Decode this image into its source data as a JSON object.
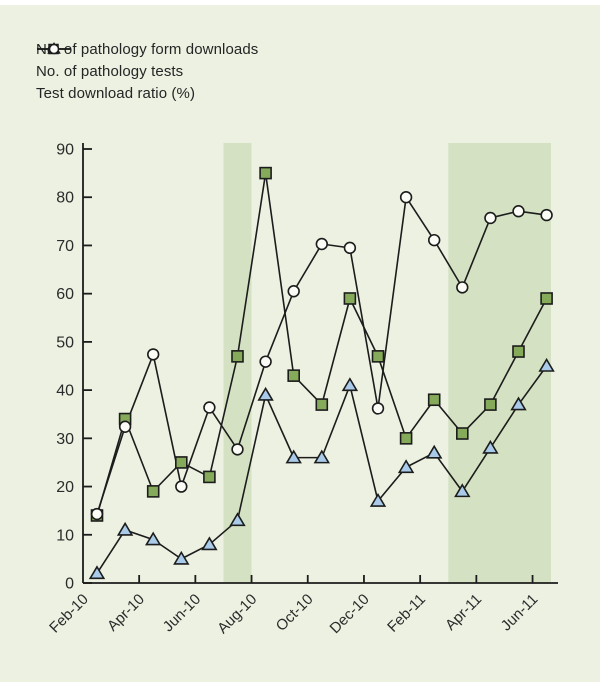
{
  "chart_data": {
    "type": "line",
    "title": "",
    "xlabel": "",
    "ylabel": "",
    "ylim": [
      0,
      90
    ],
    "y_ticks": [
      0,
      10,
      20,
      30,
      40,
      50,
      60,
      70,
      80,
      90
    ],
    "grid": false,
    "legend_position": "top-left",
    "categories": [
      "Feb-10",
      "Mar-10",
      "Apr-10",
      "May-10",
      "Jun-10",
      "Jul-10",
      "Aug-10",
      "Sep-10",
      "Oct-10",
      "Nov-10",
      "Dec-10",
      "Jan-11",
      "Feb-11",
      "Mar-11",
      "Apr-11",
      "May-11",
      "Jun-11"
    ],
    "x_tick_labels": [
      "Feb-10",
      "Apr-10",
      "Jun-10",
      "Aug-10",
      "Oct-10",
      "Dec-10",
      "Feb-11",
      "Apr-11",
      "Jun-11"
    ],
    "series": [
      {
        "name": "No. of pathology form downloads",
        "marker": "square",
        "values": [
          14,
          34,
          19,
          25,
          22,
          47,
          85,
          43,
          37,
          59,
          47,
          30,
          38,
          31,
          37,
          48,
          59
        ]
      },
      {
        "name": "No. of pathology tests",
        "marker": "triangle",
        "values": [
          2,
          11,
          9,
          5,
          8,
          13,
          39,
          26,
          26,
          41,
          17,
          24,
          27,
          19,
          28,
          37,
          45
        ]
      },
      {
        "name": "Test download ratio (%)",
        "marker": "circle",
        "values": [
          14.3,
          32.4,
          47.4,
          20.0,
          36.4,
          27.7,
          45.9,
          60.5,
          70.3,
          69.5,
          36.2,
          80.0,
          71.1,
          61.3,
          75.7,
          77.1,
          76.3
        ]
      }
    ],
    "highlight_bands": [
      {
        "from": "Jul-10",
        "to": "Jul-10"
      },
      {
        "from": "Mar-11",
        "to": "Jun-11"
      }
    ]
  },
  "colors": {
    "background": "#ecf1e2",
    "band": "#d4e2c3",
    "line": "#1c1c1c",
    "text": "#2b2b2b",
    "square_fill": "#85aa5a",
    "triangle_fill": "#a9cbe9",
    "circle_fill": "#fbfcf6"
  }
}
